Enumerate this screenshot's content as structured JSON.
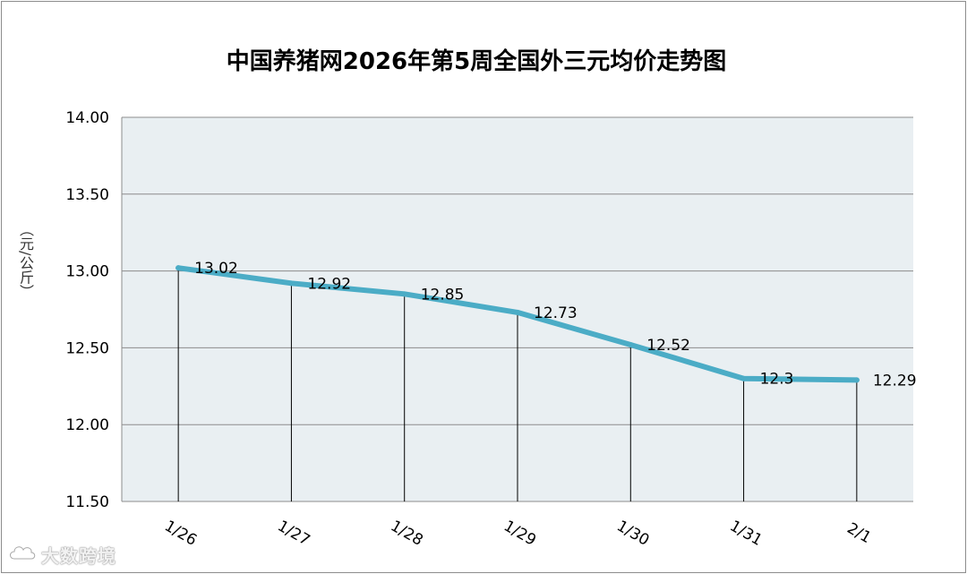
{
  "chart_data": {
    "type": "line",
    "title": "中国养猪网2026年第5周全国外三元均价走势图",
    "ylabel": "（元/公斤）",
    "categories": [
      "1/26",
      "1/27",
      "1/28",
      "1/29",
      "1/30",
      "1/31",
      "2/1"
    ],
    "series": [
      {
        "values": [
          13.02,
          12.92,
          12.85,
          12.73,
          12.52,
          12.3,
          12.29
        ],
        "labels": [
          "13.02",
          "12.92",
          "12.85",
          "12.73",
          "12.52",
          "12.3",
          "12.29"
        ],
        "color": "#4bacc6"
      }
    ],
    "ylim": [
      11.5,
      14.0
    ],
    "yticks": [
      "11.50",
      "12.00",
      "12.50",
      "13.00",
      "13.50",
      "14.00"
    ],
    "grid": true,
    "drop_lines": true,
    "plot_background": "#e9eff2"
  },
  "watermark": {
    "text": "大数跨境",
    "icon": "cloud-logo-icon"
  }
}
